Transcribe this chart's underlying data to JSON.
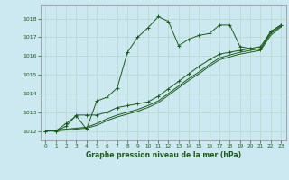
{
  "title": "Graphe pression niveau de la mer (hPa)",
  "bg_color": "#cce8f0",
  "grid_color": "#b8d8cc",
  "line_color": "#1a5c1a",
  "xlim": [
    -0.5,
    23.5
  ],
  "ylim": [
    1011.5,
    1018.7
  ],
  "yticks": [
    1012,
    1013,
    1014,
    1015,
    1016,
    1017,
    1018
  ],
  "xticks": [
    0,
    1,
    2,
    3,
    4,
    5,
    6,
    7,
    8,
    9,
    10,
    11,
    12,
    13,
    14,
    15,
    16,
    17,
    18,
    19,
    20,
    21,
    22,
    23
  ],
  "series1_x": [
    0,
    1,
    2,
    3,
    4,
    5,
    6,
    7,
    8,
    9,
    10,
    11,
    12,
    13,
    14,
    15,
    16,
    17,
    18,
    19,
    20,
    21,
    22,
    23
  ],
  "series1_y": [
    1012.0,
    1012.0,
    1012.4,
    1012.8,
    1012.1,
    1013.6,
    1013.8,
    1014.3,
    1016.2,
    1017.0,
    1017.5,
    1018.1,
    1017.85,
    1016.55,
    1016.9,
    1017.1,
    1017.2,
    1017.65,
    1017.65,
    1016.5,
    1016.4,
    1016.35,
    1017.3,
    1017.65
  ],
  "series2_x": [
    0,
    1,
    2,
    3,
    4,
    5,
    6,
    7,
    8,
    9,
    10,
    11,
    12,
    13,
    14,
    15,
    16,
    17,
    18,
    19,
    20,
    21,
    22,
    23
  ],
  "series2_y": [
    1012.0,
    1012.0,
    1012.25,
    1012.85,
    1012.85,
    1012.85,
    1013.0,
    1013.25,
    1013.35,
    1013.45,
    1013.55,
    1013.85,
    1014.25,
    1014.65,
    1015.05,
    1015.45,
    1015.8,
    1016.1,
    1016.2,
    1016.3,
    1016.4,
    1016.5,
    1017.3,
    1017.65
  ],
  "series3_x": [
    0,
    1,
    2,
    3,
    4,
    5,
    6,
    7,
    8,
    9,
    10,
    11,
    12,
    13,
    14,
    15,
    16,
    17,
    18,
    19,
    20,
    21,
    22,
    23
  ],
  "series3_y": [
    1012.0,
    1012.05,
    1012.1,
    1012.15,
    1012.2,
    1012.4,
    1012.65,
    1012.85,
    1013.0,
    1013.15,
    1013.35,
    1013.6,
    1014.0,
    1014.4,
    1014.8,
    1015.15,
    1015.55,
    1015.9,
    1016.05,
    1016.2,
    1016.3,
    1016.4,
    1017.2,
    1017.6
  ],
  "series4_x": [
    0,
    1,
    2,
    3,
    4,
    5,
    6,
    7,
    8,
    9,
    10,
    11,
    12,
    13,
    14,
    15,
    16,
    17,
    18,
    19,
    20,
    21,
    22,
    23
  ],
  "series4_y": [
    1012.0,
    1012.0,
    1012.05,
    1012.1,
    1012.15,
    1012.3,
    1012.55,
    1012.75,
    1012.9,
    1013.05,
    1013.25,
    1013.5,
    1013.9,
    1014.3,
    1014.7,
    1015.05,
    1015.45,
    1015.8,
    1015.95,
    1016.1,
    1016.2,
    1016.3,
    1017.1,
    1017.55
  ]
}
